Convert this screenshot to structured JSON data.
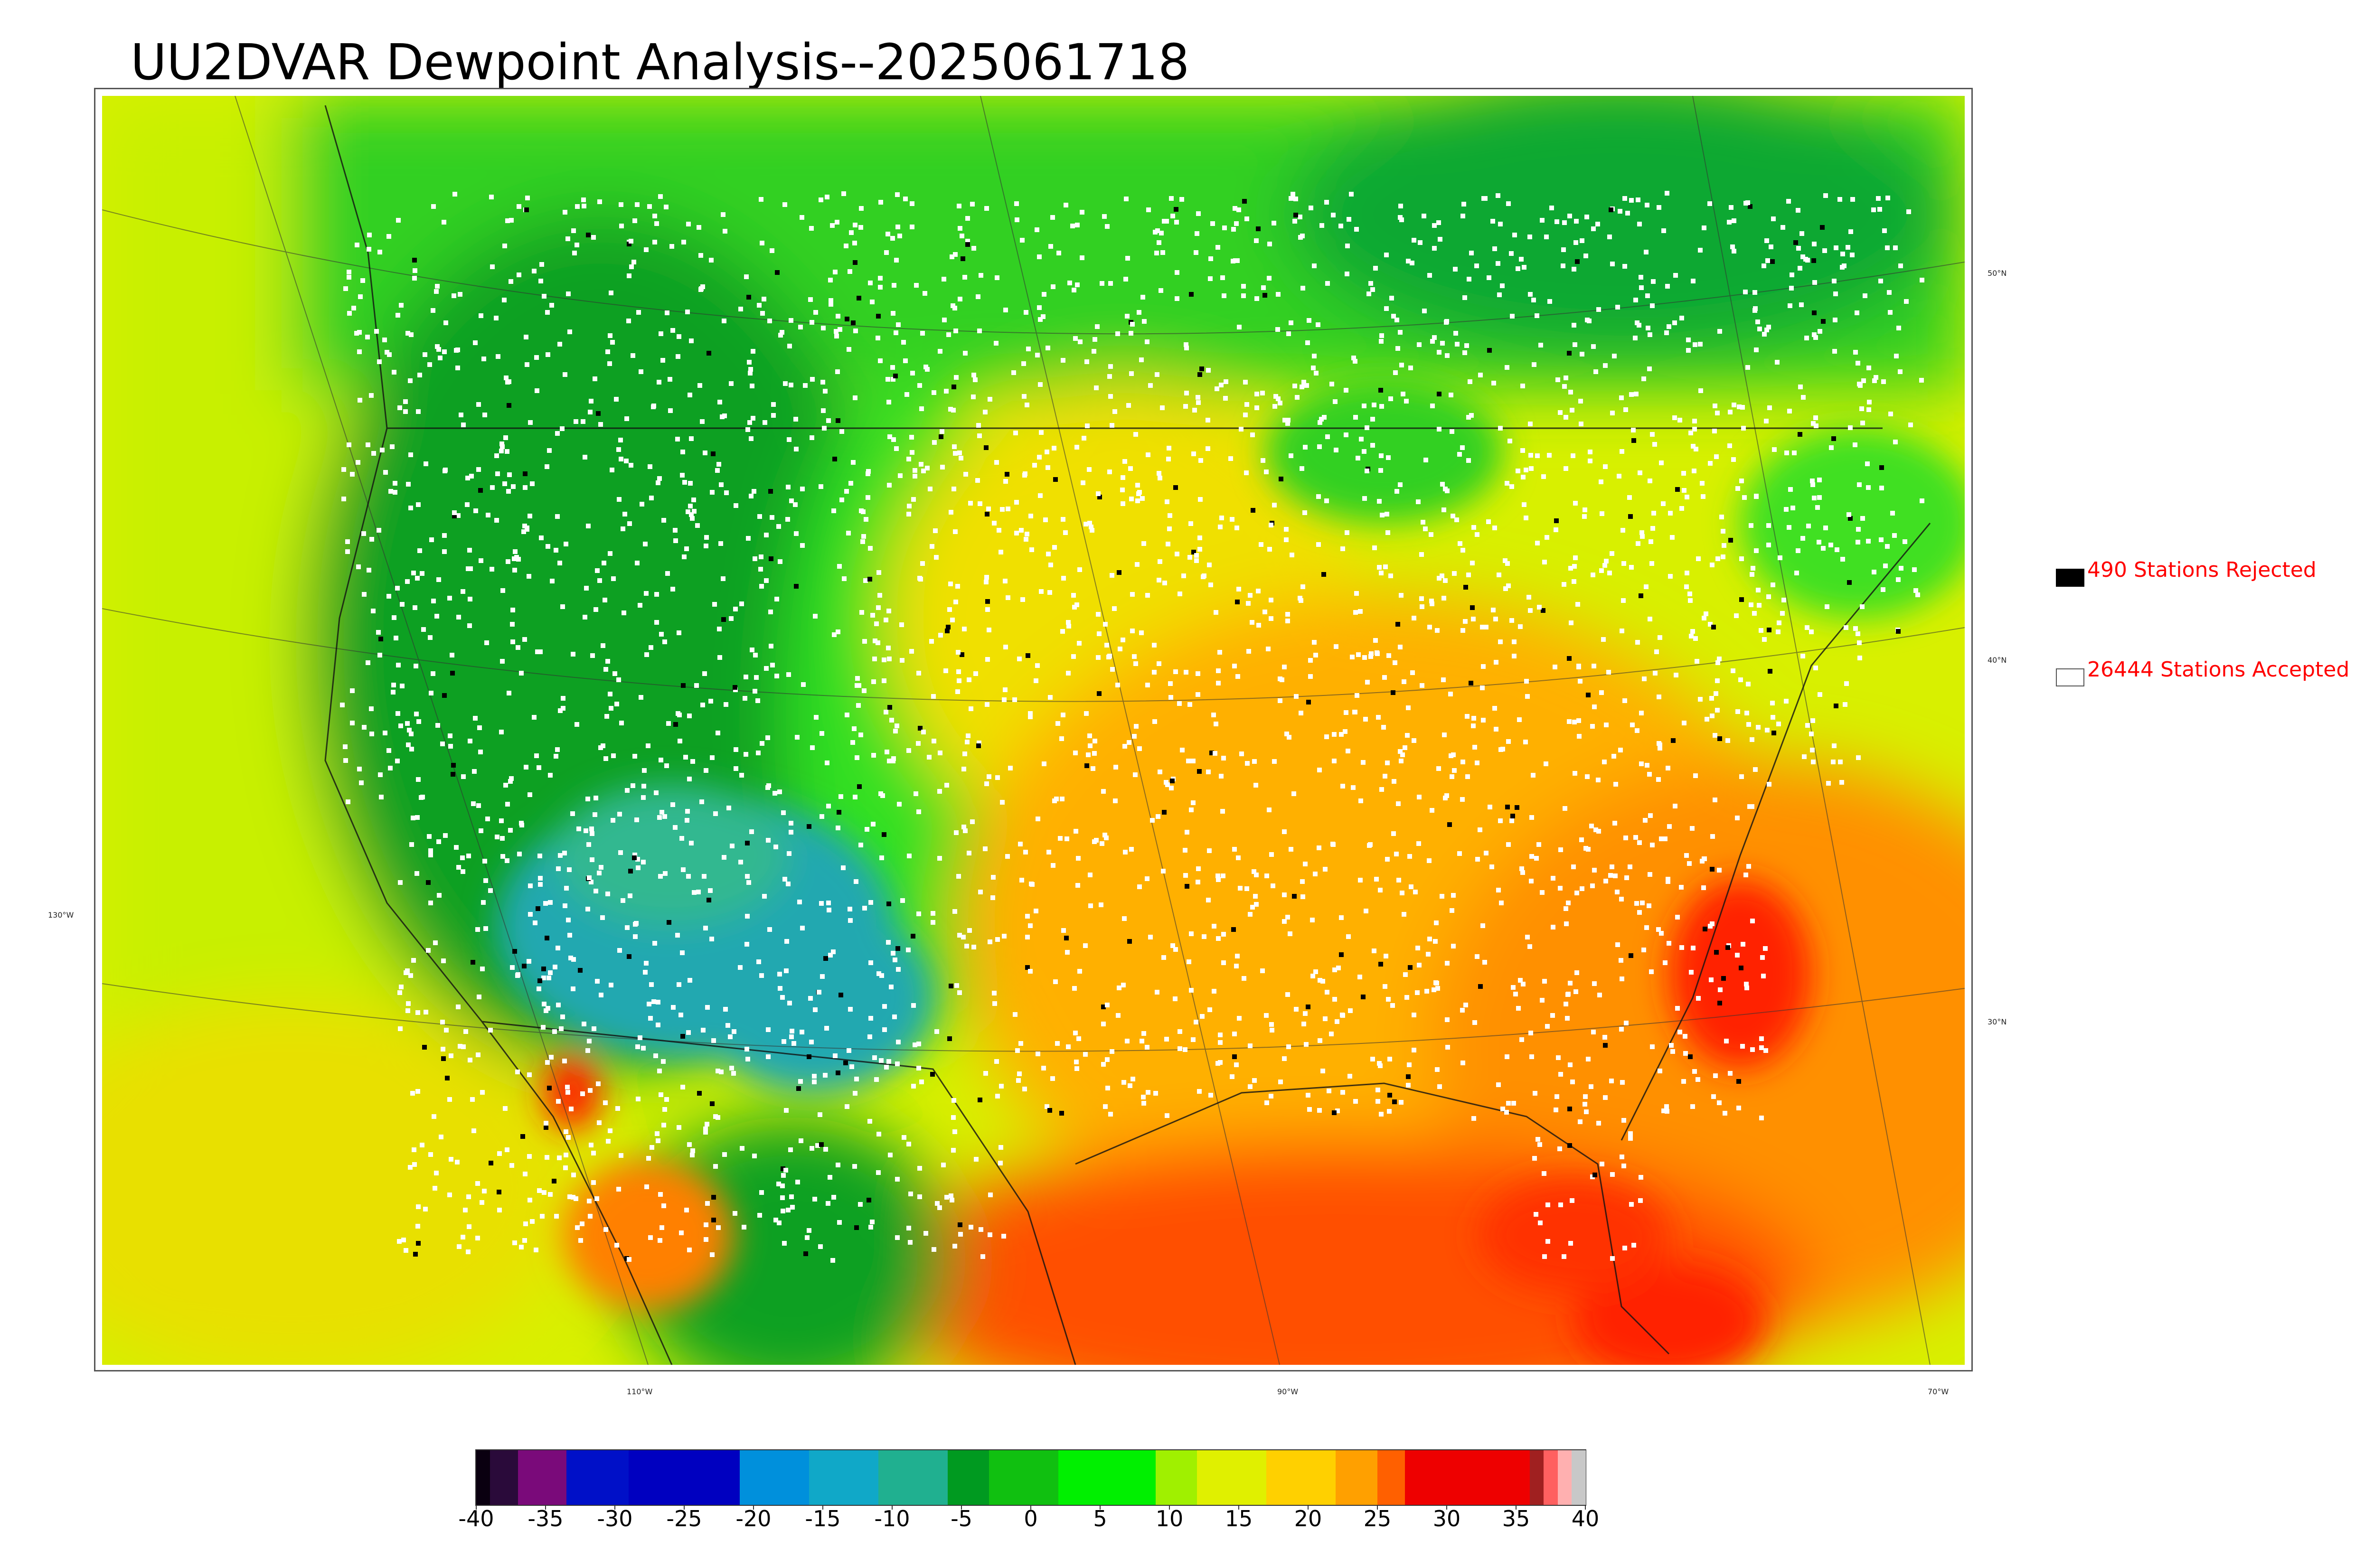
{
  "title": "UU2DVAR Dewpoint Analysis--2025061718",
  "legend": {
    "rejected": {
      "label": "490 Stations Rejected",
      "swatch_color": "#000000"
    },
    "accepted": {
      "label": "26444 Stations Accepted",
      "swatch_color": "#ffffff"
    }
  },
  "map_labels": {
    "lat": [
      "50°N",
      "40°N",
      "30°N",
      "130°W"
    ],
    "lon": [
      "110°W",
      "90°W",
      "70°W"
    ]
  },
  "colorbar": {
    "ticks": [
      "-40",
      "-35",
      "-30",
      "-25",
      "-20",
      "-15",
      "-10",
      "-5",
      "0",
      "5",
      "10",
      "15",
      "20",
      "25",
      "30",
      "35",
      "40"
    ],
    "range": [
      -40,
      40
    ],
    "segments": [
      {
        "from": -40,
        "to": -39,
        "color": "#0a0010"
      },
      {
        "from": -39,
        "to": -37,
        "color": "#2a0a3a"
      },
      {
        "from": -37,
        "to": -33.5,
        "color": "#7a0a7a"
      },
      {
        "from": -33.5,
        "to": -29,
        "color": "#0010c8"
      },
      {
        "from": -29,
        "to": -21,
        "color": "#0000c0"
      },
      {
        "from": -21,
        "to": -16,
        "color": "#0090dc"
      },
      {
        "from": -16,
        "to": -11,
        "color": "#10a8c8"
      },
      {
        "from": -11,
        "to": -6,
        "color": "#20b090"
      },
      {
        "from": -6,
        "to": -3,
        "color": "#009a20"
      },
      {
        "from": -3,
        "to": 2,
        "color": "#10c010"
      },
      {
        "from": 2,
        "to": 9,
        "color": "#00f000"
      },
      {
        "from": 9,
        "to": 12,
        "color": "#a0f000"
      },
      {
        "from": 12,
        "to": 17,
        "color": "#e0f000"
      },
      {
        "from": 17,
        "to": 22,
        "color": "#ffd000"
      },
      {
        "from": 22,
        "to": 25,
        "color": "#ffa000"
      },
      {
        "from": 25,
        "to": 27,
        "color": "#ff6000"
      },
      {
        "from": 27,
        "to": 36,
        "color": "#ee0000"
      },
      {
        "from": 36,
        "to": 37,
        "color": "#a02020"
      },
      {
        "from": 37,
        "to": 38,
        "color": "#ff6060"
      },
      {
        "from": 38,
        "to": 39,
        "color": "#ffb0b0"
      },
      {
        "from": 39,
        "to": 40,
        "color": "#c8c8c8"
      }
    ]
  },
  "field_colors": {
    "cold": "#20a8b0",
    "dry": "#10a020",
    "mid": "#00f000",
    "moderate": "#d8f000",
    "warm": "#ffb000",
    "hot": "#ff4000"
  }
}
